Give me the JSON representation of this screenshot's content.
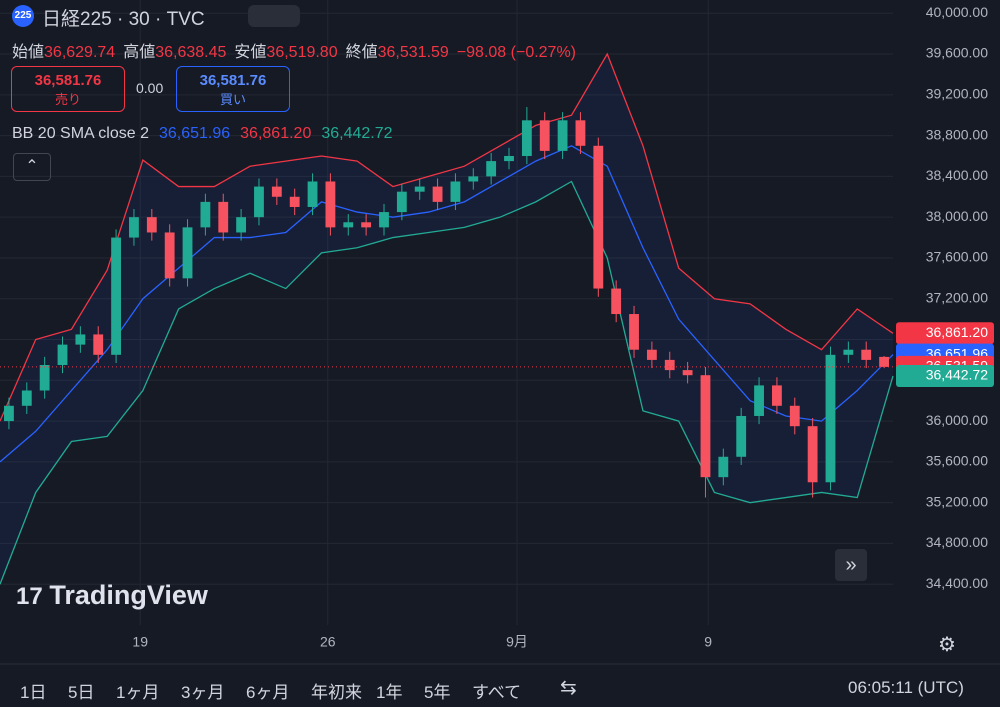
{
  "ui": {
    "symbol_badge": "225",
    "symbol": "日経225 · 30 · TVC",
    "ohlc": [
      {
        "label": "始値",
        "value": "36,629.74"
      },
      {
        "label": "高値",
        "value": "36,638.45"
      },
      {
        "label": "安値",
        "value": "36,519.80"
      },
      {
        "label": "終値",
        "value": "36,531.59"
      }
    ],
    "change": "−98.08 (−0.27%)",
    "sell": {
      "price": "36,581.76",
      "label": "売り"
    },
    "spread": "0.00",
    "buy": {
      "price": "36,581.76",
      "label": "買い"
    },
    "indicator": {
      "name": "BB 20 SMA close 2",
      "values": [
        {
          "text": "36,651.96",
          "color": "#2962ff"
        },
        {
          "text": "36,861.20",
          "color": "#f23645"
        },
        {
          "text": "36,442.72",
          "color": "#22ab94"
        }
      ]
    },
    "watermark": "TradingView",
    "timeframes": [
      "1日",
      "5日",
      "1ヶ月",
      "3ヶ月",
      "6ヶ月",
      "年初来",
      "1年",
      "5年",
      "すべて"
    ],
    "clock": "06:05:11 (UTC)"
  },
  "chart_data": {
    "type": "candlestick",
    "x": [
      1,
      3,
      5,
      7,
      9,
      11,
      13,
      15,
      17,
      19,
      21,
      23,
      25,
      27,
      29,
      31,
      33,
      35,
      37,
      39,
      41,
      43,
      45,
      47,
      49,
      51,
      53,
      55,
      57,
      59,
      61,
      63,
      65,
      67,
      69,
      71,
      73,
      75,
      77,
      79,
      81,
      83,
      85,
      87,
      89,
      91,
      93,
      95,
      97,
      99
    ],
    "open": [
      36000,
      36150,
      36300,
      36550,
      36750,
      36850,
      36650,
      37800,
      38000,
      37850,
      37400,
      37900,
      38150,
      37850,
      38000,
      38300,
      38200,
      38100,
      38350,
      37900,
      37950,
      37900,
      38050,
      38250,
      38300,
      38150,
      38350,
      38400,
      38550,
      38600,
      38950,
      38650,
      38950,
      38700,
      37300,
      37050,
      36700,
      36600,
      36500,
      36450,
      35450,
      35650,
      36050,
      36350,
      36150,
      35950,
      35400,
      36650,
      36700,
      36629.74
    ],
    "high": [
      36230,
      36380,
      36630,
      36830,
      36930,
      36930,
      37880,
      38080,
      38080,
      37930,
      37980,
      38230,
      38230,
      38080,
      38380,
      38380,
      38280,
      38430,
      38430,
      38030,
      38030,
      38130,
      38330,
      38380,
      38380,
      38430,
      38480,
      38630,
      38680,
      39080,
      39030,
      39030,
      39030,
      38780,
      37380,
      37130,
      36780,
      36680,
      36580,
      36530,
      35730,
      36130,
      36430,
      36430,
      36230,
      36030,
      36730,
      36780,
      36780,
      36638.45
    ],
    "low": [
      35920,
      36070,
      36220,
      36470,
      36670,
      36570,
      36570,
      37720,
      37770,
      37320,
      37320,
      37820,
      37770,
      37770,
      37920,
      38120,
      38020,
      38020,
      37820,
      37820,
      37820,
      37820,
      37970,
      38170,
      38070,
      38070,
      38270,
      38320,
      38470,
      38520,
      38570,
      38570,
      38620,
      37220,
      36970,
      36620,
      36520,
      36420,
      36370,
      35250,
      35370,
      35570,
      35970,
      36070,
      35870,
      35250,
      35320,
      36570,
      36520,
      36519.8
    ],
    "close": [
      36150,
      36300,
      36550,
      36750,
      36850,
      36650,
      37800,
      38000,
      37850,
      37400,
      37900,
      38150,
      37850,
      38000,
      38300,
      38200,
      38100,
      38350,
      37900,
      37950,
      37900,
      38050,
      38250,
      38300,
      38150,
      38350,
      38400,
      38550,
      38600,
      38950,
      38650,
      38950,
      38700,
      37300,
      37050,
      36700,
      36600,
      36500,
      36450,
      35450,
      35650,
      36050,
      36350,
      36150,
      35950,
      35400,
      36650,
      36700,
      36600,
      36531.59
    ],
    "up_color": "#22ab94",
    "down_color": "#f7525f",
    "overlays": [
      {
        "color": "#f23645",
        "x": [
          0,
          4,
          8,
          12,
          16,
          20,
          24,
          28,
          32,
          36,
          40,
          44,
          48,
          52,
          56,
          60,
          64,
          68,
          72,
          76,
          80,
          84,
          88,
          92,
          96,
          100
        ],
        "values": [
          36000,
          36800,
          36900,
          37480,
          38560,
          38300,
          38300,
          38500,
          38550,
          38600,
          38550,
          38300,
          38400,
          38500,
          38700,
          38900,
          39000,
          39600,
          38700,
          37500,
          37200,
          37150,
          36900,
          36700,
          37100,
          36861.2
        ]
      },
      {
        "color": "#2962ff",
        "x": [
          0,
          4,
          8,
          12,
          16,
          20,
          24,
          28,
          32,
          36,
          40,
          44,
          48,
          52,
          56,
          60,
          64,
          68,
          72,
          76,
          80,
          84,
          88,
          92,
          96,
          100
        ],
        "values": [
          35600,
          35900,
          36300,
          36700,
          37200,
          37500,
          37800,
          37800,
          37850,
          38150,
          38050,
          38000,
          38050,
          38150,
          38350,
          38550,
          38700,
          38500,
          37700,
          37000,
          36600,
          36200,
          36050,
          36000,
          36300,
          36651.96
        ]
      },
      {
        "color": "#22ab94",
        "x": [
          0,
          4,
          8,
          12,
          16,
          20,
          24,
          28,
          32,
          36,
          40,
          44,
          48,
          52,
          56,
          60,
          64,
          68,
          72,
          76,
          80,
          84,
          88,
          92,
          96,
          100
        ],
        "values": [
          34400,
          35300,
          35800,
          35850,
          36300,
          37100,
          37300,
          37450,
          37300,
          37650,
          37700,
          37800,
          37850,
          37900,
          38000,
          38150,
          38350,
          37600,
          36100,
          36000,
          35300,
          35200,
          35250,
          35300,
          35250,
          36442.72
        ]
      }
    ],
    "xlim": [
      0,
      100
    ],
    "ylim": [
      34000,
      40130
    ],
    "xticks": [
      {
        "value": 15.7,
        "label": "19"
      },
      {
        "value": 36.7,
        "label": "26"
      },
      {
        "value": 57.9,
        "label": "9月"
      },
      {
        "value": 79.3,
        "label": "9"
      }
    ],
    "yticks": [
      {
        "value": 34400,
        "label": "34,400.00"
      },
      {
        "value": 34800,
        "label": "34,800.00"
      },
      {
        "value": 35200,
        "label": "35,200.00"
      },
      {
        "value": 35600,
        "label": "35,600.00"
      },
      {
        "value": 36000,
        "label": "36,000.00"
      },
      {
        "value": 36400,
        "label": "36,400.00"
      },
      {
        "value": 36800,
        "label": "36,800.00"
      },
      {
        "value": 37200,
        "label": "37,200.00"
      },
      {
        "value": 37600,
        "label": "37,600.00"
      },
      {
        "value": 38000,
        "label": "38,000.00"
      },
      {
        "value": 38400,
        "label": "38,400.00"
      },
      {
        "value": 38800,
        "label": "38,800.00"
      },
      {
        "value": 39200,
        "label": "39,200.00"
      },
      {
        "value": 39600,
        "label": "39,600.00"
      },
      {
        "value": 40000,
        "label": "40,000.00"
      }
    ],
    "grid": true,
    "price_tags": [
      {
        "value": 36861.2,
        "label": "36,861.20",
        "color": "#f23645"
      },
      {
        "value": 36651.96,
        "label": "36,651.96",
        "color": "#2962ff"
      },
      {
        "value": 36531.59,
        "label": "36,531.59",
        "color": "#f23645"
      },
      {
        "value": 36442.72,
        "label": "36,442.72",
        "color": "#22ab94"
      }
    ],
    "last_line": {
      "value": 36531.59,
      "color": "#f23645"
    }
  }
}
